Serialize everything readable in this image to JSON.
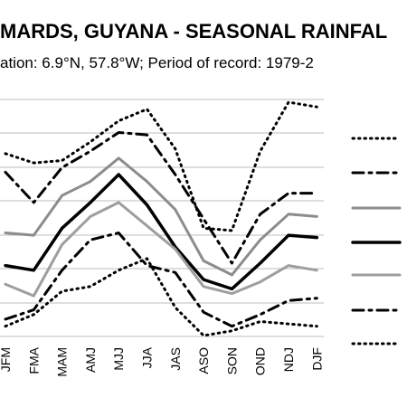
{
  "chart_data": {
    "type": "line",
    "title": "MARDS, GUYANA - SEASONAL RAINFAL",
    "subtitle": "ation: 6.9°N, 57.8°W; Period of record: 1979-2",
    "categories": [
      "JFM",
      "FMA",
      "MAM",
      "AMJ",
      "MJJ",
      "JJA",
      "JAS",
      "ASO",
      "SON",
      "OND",
      "NDJ",
      "DJF"
    ],
    "grid": true,
    "legend": "right",
    "y_rel_range": [
      0,
      1
    ],
    "series": [
      {
        "style": "dotted",
        "color": "#000000",
        "width": 3,
        "values": [
          0.78,
          0.74,
          0.75,
          0.83,
          0.92,
          0.97,
          0.8,
          0.46,
          0.45,
          0.79,
          1.0,
          0.98
        ]
      },
      {
        "style": "dash-dot",
        "color": "#000000",
        "width": 3,
        "values": [
          0.7,
          0.57,
          0.72,
          0.79,
          0.87,
          0.86,
          0.69,
          0.5,
          0.31,
          0.52,
          0.61,
          0.61
        ]
      },
      {
        "style": "solid",
        "color": "#8c8c8c",
        "width": 3,
        "values": [
          0.44,
          0.43,
          0.6,
          0.66,
          0.76,
          0.66,
          0.54,
          0.32,
          0.26,
          0.41,
          0.52,
          0.51
        ]
      },
      {
        "style": "solid",
        "color": "#000000",
        "width": 3.5,
        "values": [
          0.3,
          0.28,
          0.46,
          0.57,
          0.69,
          0.56,
          0.38,
          0.24,
          0.2,
          0.31,
          0.43,
          0.42
        ]
      },
      {
        "style": "solid",
        "color": "#9e9e9e",
        "width": 3,
        "values": [
          0.22,
          0.17,
          0.39,
          0.51,
          0.57,
          0.47,
          0.37,
          0.21,
          0.18,
          0.23,
          0.3,
          0.28
        ]
      },
      {
        "style": "dash-dot",
        "color": "#000000",
        "width": 3,
        "values": [
          0.07,
          0.11,
          0.28,
          0.41,
          0.44,
          0.3,
          0.27,
          0.1,
          0.04,
          0.09,
          0.15,
          0.16
        ]
      },
      {
        "style": "dotted",
        "color": "#000000",
        "width": 3,
        "values": [
          0.04,
          0.09,
          0.19,
          0.21,
          0.28,
          0.33,
          0.12,
          0.0,
          0.02,
          0.06,
          0.05,
          0.04
        ]
      }
    ]
  }
}
